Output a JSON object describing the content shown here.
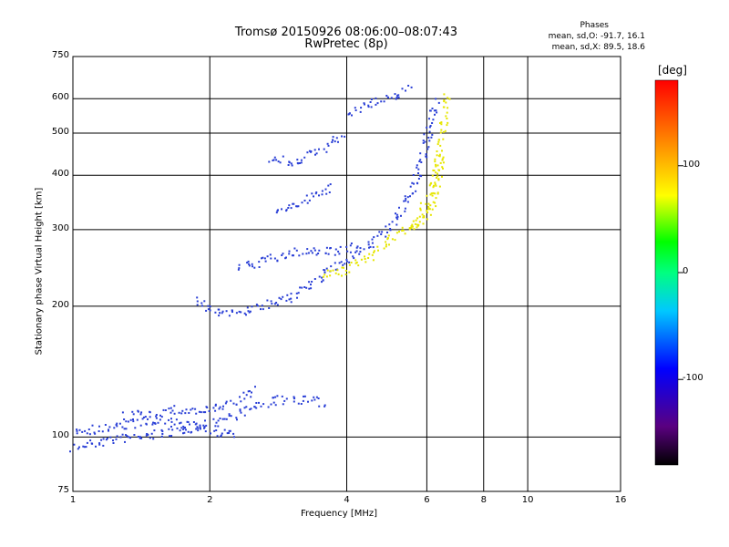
{
  "header": {
    "title": "Tromsø 20150926 08:06:00–08:07:43",
    "subtitle": "RwPretec (8p)"
  },
  "phase_box": {
    "heading": "Phases",
    "line1": "mean, sd,O: -91.7, 16.1",
    "line2": "mean, sd,X:  89.5, 18.6"
  },
  "colorbar": {
    "label": "[deg]",
    "ticks": [
      "100",
      "0",
      "-100"
    ],
    "tick_values": [
      100,
      0,
      -100
    ],
    "range": [
      -180,
      180
    ]
  },
  "colors": {
    "o_mode_trace": "#2a3fd6",
    "x_mode_trace": "#e6e600",
    "grid": "#000000"
  },
  "chart_data": {
    "type": "scatter",
    "title": "Tromsø 20150926 08:06:00–08:07:43",
    "subtitle": "RwPretec (8p)",
    "xlabel": "Frequency [MHz]",
    "ylabel": "Stationary phase Virtual Height [km]",
    "xscale": "log",
    "yscale": "log",
    "xlim": [
      1,
      16
    ],
    "ylim": [
      75,
      750
    ],
    "xticks": [
      1,
      2,
      4,
      6,
      8,
      10,
      16
    ],
    "xtick_labels": [
      "1",
      "2",
      "4",
      "6",
      "8",
      "10",
      "16"
    ],
    "yticks": [
      75,
      100,
      200,
      300,
      400,
      500,
      600,
      750
    ],
    "ytick_labels": [
      "75",
      "100",
      "200",
      "300",
      "400",
      "500",
      "600",
      "750"
    ],
    "grid": true,
    "series": [
      {
        "mode": "O",
        "traces": [
          {
            "x": [
              1.0,
              1.1,
              1.2,
              1.3,
              1.45,
              1.6,
              1.8,
              2.0,
              2.2,
              2.4,
              2.7,
              3.0,
              3.3,
              3.6
            ],
            "y": [
              95,
              97,
              99,
              100,
              101,
              103,
              105,
              108,
              112,
              116,
              121,
              123,
              122,
              120
            ]
          },
          {
            "x": [
              1.0,
              1.15,
              1.3,
              1.5,
              1.7,
              2.0,
              2.3
            ],
            "y": [
              104,
              105,
              107,
              109,
              108,
              104,
              101
            ]
          },
          {
            "x": [
              1.3,
              1.5,
              1.7,
              1.9,
              2.1,
              2.3,
              2.5
            ],
            "y": [
              112,
              114,
              116,
              115,
              117,
              122,
              130
            ]
          },
          {
            "x": [
              1.85,
              2.0,
              2.2,
              2.5,
              2.8,
              3.1,
              3.4,
              3.8,
              4.2,
              4.6,
              5.0,
              5.3,
              5.6,
              5.9,
              6.1,
              6.3
            ],
            "y": [
              208,
              196,
              194,
              198,
              205,
              215,
              228,
              250,
              268,
              285,
              305,
              335,
              380,
              450,
              530,
              600
            ]
          },
          {
            "x": [
              2.3,
              2.6,
              2.9,
              3.2,
              3.5,
              3.8,
              4.2
            ],
            "y": [
              245,
              255,
              262,
              270,
              268,
              270,
              275
            ]
          },
          {
            "x": [
              2.7,
              3.0,
              3.3,
              3.6,
              3.9
            ],
            "y": [
              440,
              430,
              445,
              470,
              500
            ]
          },
          {
            "x": [
              2.8,
              3.1,
              3.4,
              3.7
            ],
            "y": [
              330,
              345,
              360,
              380
            ]
          },
          {
            "x": [
              4.0,
              4.3,
              4.6,
              4.9,
              5.2,
              5.5
            ],
            "y": [
              560,
              580,
              590,
              600,
              620,
              640
            ]
          }
        ]
      },
      {
        "mode": "X",
        "traces": [
          {
            "x": [
              3.5,
              3.9,
              4.3,
              4.7,
              5.1,
              5.5,
              5.8,
              6.1,
              6.3,
              6.5,
              6.6
            ],
            "y": [
              238,
              242,
              255,
              272,
              292,
              305,
              330,
              360,
              420,
              520,
              620
            ]
          },
          {
            "x": [
              5.5,
              5.8,
              6.1,
              6.3,
              6.5
            ],
            "y": [
              300,
              310,
              340,
              380,
              450
            ]
          }
        ]
      }
    ]
  }
}
